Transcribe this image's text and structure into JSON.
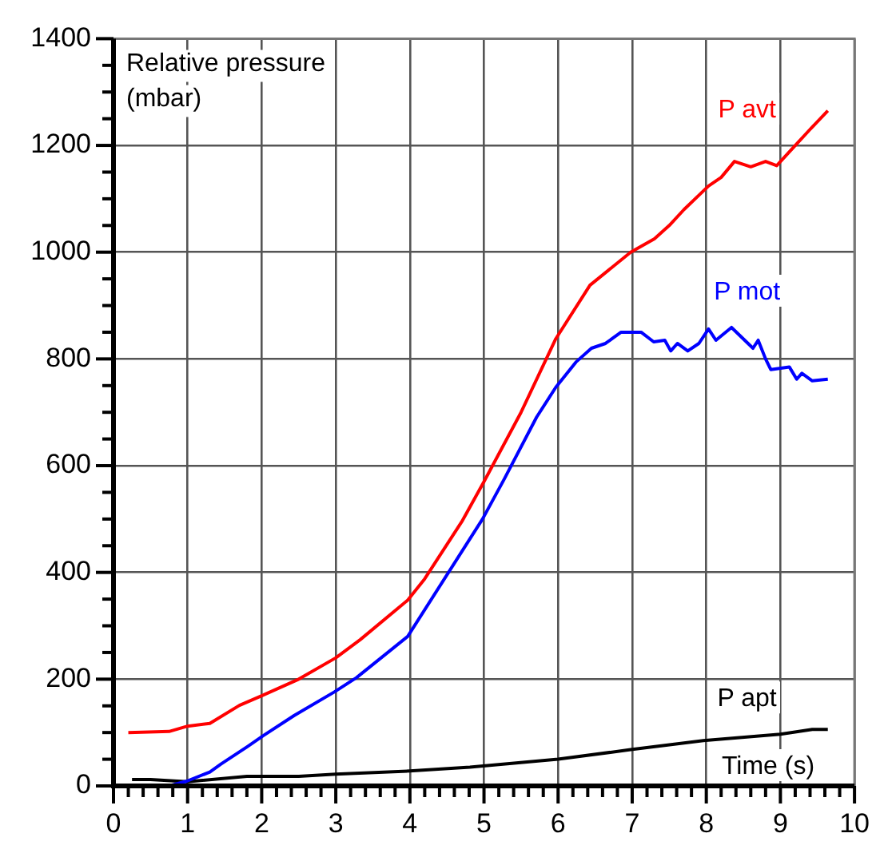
{
  "chart_data": {
    "type": "line",
    "xlabel": "Time (s)",
    "ylabel": "Relative pressure (mbar)",
    "xlim": [
      0,
      10
    ],
    "ylim": [
      0,
      1400
    ],
    "xticks": [
      0,
      {
        "value": 0.2,
        "label": null
      },
      {
        "value": 0.4,
        "label": null
      },
      {
        "value": 0.6,
        "label": null
      },
      {
        "value": 0.8,
        "label": null
      },
      1,
      {
        "value": 1.2,
        "label": null
      },
      {
        "value": 1.4,
        "label": null
      },
      {
        "value": 1.6,
        "label": null
      },
      {
        "value": 1.8,
        "label": null
      },
      2,
      {
        "value": 2.2,
        "label": null
      },
      {
        "value": 2.4,
        "label": null
      },
      {
        "value": 2.6,
        "label": null
      },
      {
        "value": 2.8,
        "label": null
      },
      3,
      {
        "value": 3.2,
        "label": null
      },
      {
        "value": 3.4,
        "label": null
      },
      {
        "value": 3.6,
        "label": null
      },
      {
        "value": 3.8,
        "label": null
      },
      4,
      {
        "value": 4.2,
        "label": null
      },
      {
        "value": 4.4,
        "label": null
      },
      {
        "value": 4.6,
        "label": null
      },
      {
        "value": 4.8,
        "label": null
      },
      5,
      {
        "value": 5.2,
        "label": null
      },
      {
        "value": 5.4,
        "label": null
      },
      {
        "value": 5.6,
        "label": null
      },
      {
        "value": 5.8,
        "label": null
      },
      6,
      {
        "value": 6.2,
        "label": null
      },
      {
        "value": 6.4,
        "label": null
      },
      {
        "value": 6.6,
        "label": null
      },
      {
        "value": 6.8,
        "label": null
      },
      7,
      {
        "value": 7.2,
        "label": null
      },
      {
        "value": 7.4,
        "label": null
      },
      {
        "value": 7.6,
        "label": null
      },
      {
        "value": 7.8,
        "label": null
      },
      8,
      {
        "value": 8.2,
        "label": null
      },
      {
        "value": 8.4,
        "label": null
      },
      {
        "value": 8.6,
        "label": null
      },
      {
        "value": 8.8,
        "label": null
      },
      9,
      {
        "value": 9.2,
        "label": null
      },
      {
        "value": 9.4,
        "label": null
      },
      {
        "value": 9.6,
        "label": null
      },
      {
        "value": 9.8,
        "label": null
      },
      10
    ],
    "yticks": [
      0,
      {
        "value": 50,
        "label": null
      },
      {
        "value": 100,
        "label": null
      },
      {
        "value": 150,
        "label": null
      },
      200,
      {
        "value": 250,
        "label": null
      },
      {
        "value": 300,
        "label": null
      },
      {
        "value": 350,
        "label": null
      },
      400,
      {
        "value": 450,
        "label": null
      },
      {
        "value": 500,
        "label": null
      },
      {
        "value": 550,
        "label": null
      },
      600,
      {
        "value": 650,
        "label": null
      },
      {
        "value": 700,
        "label": null
      },
      {
        "value": 750,
        "label": null
      },
      800,
      {
        "value": 850,
        "label": null
      },
      {
        "value": 900,
        "label": null
      },
      {
        "value": 950,
        "label": null
      },
      1000,
      {
        "value": 1050,
        "label": null
      },
      {
        "value": 1100,
        "label": null
      },
      {
        "value": 1150,
        "label": null
      },
      1200,
      {
        "value": 1250,
        "label": null
      },
      {
        "value": 1300,
        "label": null
      },
      {
        "value": 1350,
        "label": null
      },
      1400
    ],
    "grid": true,
    "legend": false,
    "marker": "none",
    "line_style": "solid",
    "series": [
      {
        "name": "P avt",
        "color": "#ff0000",
        "x": [
          0.2,
          0.75,
          1.0,
          1.3,
          1.7,
          2.0,
          2.5,
          3.0,
          3.33,
          3.97,
          4.2,
          4.7,
          5.0,
          5.5,
          5.97,
          6.43,
          6.98,
          7.3,
          7.5,
          7.7,
          8.03,
          8.2,
          8.38,
          8.6,
          8.8,
          8.95,
          9.2,
          9.4,
          9.64
        ],
        "values": [
          100,
          102,
          112,
          117,
          151,
          169,
          200,
          240,
          274,
          348,
          388,
          495,
          570,
          700,
          838,
          938,
          1000,
          1025,
          1050,
          1080,
          1124,
          1140,
          1170,
          1160,
          1170,
          1162,
          1200,
          1230,
          1265
        ]
      },
      {
        "name": "P mot",
        "color": "#0000ff",
        "x": [
          0.25,
          0.75,
          0.99,
          1.3,
          1.45,
          1.81,
          2.02,
          2.44,
          2.98,
          3.28,
          3.97,
          4.98,
          5.27,
          5.71,
          5.97,
          6.24,
          6.45,
          6.64,
          6.85,
          7.12,
          7.29,
          7.44,
          7.52,
          7.61,
          7.75,
          7.9,
          8.03,
          8.13,
          8.34,
          8.63,
          8.7,
          8.8,
          8.87,
          9.12,
          9.22,
          9.29,
          9.43,
          9.64
        ],
        "values": [
          0,
          0,
          9,
          26,
          41,
          74,
          94,
          132,
          176,
          203,
          280,
          500,
          574,
          691,
          747,
          794,
          820,
          829,
          850,
          850,
          832,
          835,
          815,
          829,
          815,
          829,
          856,
          835,
          859,
          820,
          835,
          800,
          780,
          785,
          762,
          773,
          759,
          762
        ]
      },
      {
        "name": "P apt",
        "color": "#000000",
        "x": [
          0.25,
          0.5,
          1.0,
          1.8,
          2.5,
          3.0,
          4.0,
          4.81,
          6.0,
          6.98,
          7.96,
          9.0,
          9.43,
          9.64
        ],
        "values": [
          12,
          12,
          8,
          18,
          18,
          22,
          28,
          35,
          50,
          68,
          85,
          97,
          106,
          106
        ]
      }
    ]
  }
}
